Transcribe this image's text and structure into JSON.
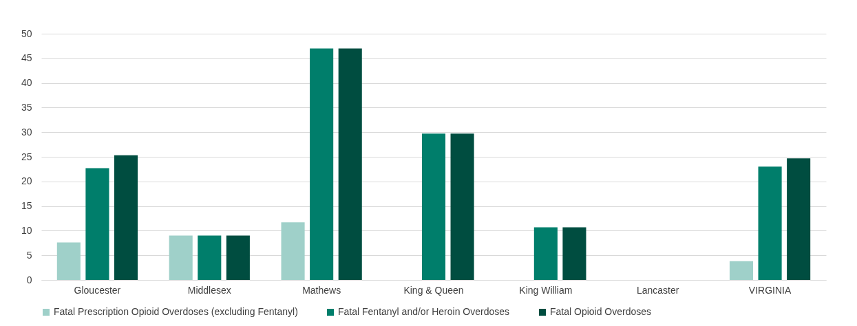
{
  "chart_data": {
    "type": "bar",
    "categories": [
      "Gloucester",
      "Middlesex",
      "Mathews",
      "King & Queen",
      "King William",
      "Lancaster",
      "VIRGINIA"
    ],
    "series": [
      {
        "name": "Fatal Prescription Opioid Overdoses (excluding Fentanyl)",
        "color": "#9fd0c9",
        "values": [
          7.6,
          9.0,
          11.7,
          0,
          0,
          0,
          3.8
        ]
      },
      {
        "name": "Fatal Fentanyl and/or Heroin Overdoses",
        "color": "#007e6b",
        "values": [
          22.7,
          9.0,
          47.0,
          29.7,
          10.7,
          0,
          23.0
        ]
      },
      {
        "name": "Fatal Opioid Overdoses",
        "color": "#004d40",
        "values": [
          25.3,
          9.0,
          47.0,
          29.7,
          10.7,
          0,
          24.7
        ]
      }
    ],
    "ylim": [
      0,
      50
    ],
    "yticks": [
      0,
      5,
      10,
      15,
      20,
      25,
      30,
      35,
      40,
      45,
      50
    ],
    "grid": "y",
    "legend": "bottom"
  }
}
